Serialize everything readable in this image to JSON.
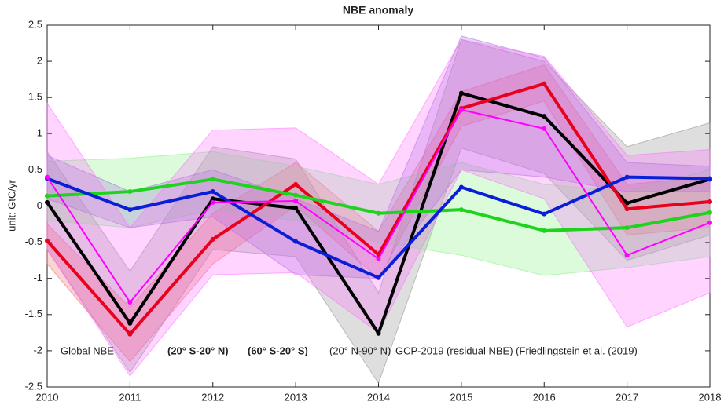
{
  "chart_data": {
    "type": "line",
    "title": "NBE anomaly",
    "y_label": "unit: GtC/yr",
    "x": [
      2010,
      2011,
      2012,
      2013,
      2014,
      2015,
      2016,
      2017,
      2018
    ],
    "xlim": [
      2010,
      2018
    ],
    "xticks": [
      2010,
      2011,
      2012,
      2013,
      2014,
      2015,
      2016,
      2017,
      2018
    ],
    "ylim": [
      -2.5,
      2.5
    ],
    "yticks": [
      -2.5,
      -2,
      -1.5,
      -1,
      -0.5,
      0,
      0.5,
      1,
      1.5,
      2,
      2.5
    ],
    "series": [
      {
        "name": "Global NBE",
        "color": "#000000",
        "band_color": "#888888",
        "values": [
          0.05,
          -1.62,
          0.1,
          -0.03,
          -1.76,
          1.56,
          1.24,
          0.04,
          0.37
        ],
        "upper": [
          0.75,
          -0.9,
          0.82,
          0.65,
          -1.2,
          2.3,
          2.0,
          0.82,
          1.15
        ],
        "lower": [
          -0.6,
          -2.3,
          -0.6,
          -0.7,
          -2.45,
          0.8,
          0.45,
          -0.75,
          -0.4
        ]
      },
      {
        "name": "(20° S-20° N)",
        "color": "#e8001c",
        "band_color": "#f06060",
        "values": [
          -0.48,
          -1.77,
          -0.46,
          0.3,
          -0.67,
          1.35,
          1.69,
          -0.04,
          0.06
        ],
        "upper": [
          -0.25,
          -1.4,
          -0.1,
          0.6,
          -0.35,
          1.58,
          1.95,
          0.3,
          0.4
        ],
        "lower": [
          -0.8,
          -2.15,
          -0.8,
          0.0,
          -1.0,
          1.1,
          1.45,
          -0.4,
          -0.3
        ]
      },
      {
        "name": "(60° S-20° S)",
        "color": "#1ed21e",
        "band_color": "#7cf07c",
        "values": [
          0.14,
          0.2,
          0.37,
          0.15,
          -0.1,
          -0.05,
          -0.34,
          -0.3,
          -0.09
        ],
        "upper": [
          0.62,
          0.66,
          0.75,
          0.55,
          0.3,
          0.6,
          0.3,
          0.2,
          0.5
        ],
        "lower": [
          -0.2,
          -0.3,
          -0.05,
          -0.2,
          -0.5,
          -0.68,
          -0.96,
          -0.85,
          -0.7
        ]
      },
      {
        "name": "(20° N-90° N)",
        "color": "#0a1ed8",
        "band_color": "#9a6ad8",
        "values": [
          0.38,
          -0.05,
          0.2,
          -0.49,
          -0.99,
          0.26,
          -0.11,
          0.4,
          0.38
        ],
        "upper": [
          0.7,
          0.2,
          0.5,
          0.1,
          -0.35,
          2.35,
          2.05,
          0.6,
          0.55
        ],
        "lower": [
          0.1,
          -0.3,
          -0.15,
          -0.95,
          -1.0,
          0.5,
          0.4,
          0.2,
          0.2
        ]
      },
      {
        "name": "GCP-2019 (residual NBE) (Friedlingstein et al. (2019)",
        "color": "#ff00ff",
        "band_color": "#ff66ff",
        "values": [
          0.4,
          -1.33,
          0.05,
          0.07,
          -0.73,
          1.33,
          1.07,
          -0.68,
          -0.23
        ],
        "upper": [
          1.42,
          -0.3,
          1.05,
          1.08,
          0.3,
          2.3,
          2.07,
          0.7,
          0.78
        ],
        "lower": [
          -0.6,
          -2.35,
          -0.95,
          -0.92,
          -1.75,
          0.5,
          0.1,
          -1.67,
          -1.2
        ]
      }
    ]
  }
}
